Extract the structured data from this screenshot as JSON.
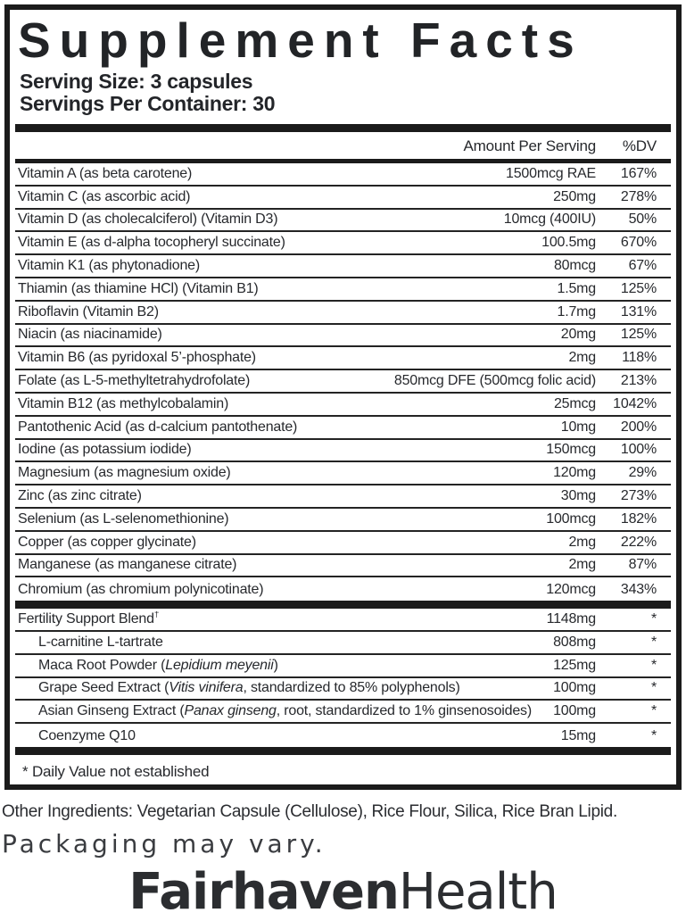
{
  "colors": {
    "ink": "#27292d",
    "rule": "#1b1b1b",
    "background": "#ffffff"
  },
  "label": {
    "title": "Supplement Facts",
    "serving_size": "Serving Size: 3 capsules",
    "servings_per_container": "Servings Per Container: 30",
    "columns": {
      "amount": "Amount Per Serving",
      "dv": "%DV"
    },
    "nutrients": [
      {
        "name": "Vitamin A (as beta carotene)",
        "amount": "1500mcg RAE",
        "dv": "167%"
      },
      {
        "name": "Vitamin C (as ascorbic acid)",
        "amount": "250mg",
        "dv": "278%"
      },
      {
        "name": "Vitamin D (as cholecalciferol) (Vitamin D3)",
        "amount": "10mcg (400IU)",
        "dv": "50%"
      },
      {
        "name": "Vitamin E (as d-alpha tocopheryl succinate)",
        "amount": "100.5mg",
        "dv": "670%"
      },
      {
        "name": "Vitamin K1 (as phytonadione)",
        "amount": "80mcg",
        "dv": "67%"
      },
      {
        "name": "Thiamin (as thiamine HCl) (Vitamin B1)",
        "amount": "1.5mg",
        "dv": "125%"
      },
      {
        "name": "Riboflavin (Vitamin B2)",
        "amount": "1.7mg",
        "dv": "131%"
      },
      {
        "name": "Niacin (as niacinamide)",
        "amount": "20mg",
        "dv": "125%"
      },
      {
        "name": "Vitamin B6 (as pyridoxal 5’-phosphate)",
        "amount": "2mg",
        "dv": "118%"
      },
      {
        "name": "Folate (as L-5-methyltetrahydrofolate)",
        "amount": "850mcg DFE (500mcg folic acid)",
        "dv": "213%"
      },
      {
        "name": "Vitamin B12 (as methylcobalamin)",
        "amount": "25mcg",
        "dv": "1042%"
      },
      {
        "name": "Pantothenic Acid (as d-calcium pantothenate)",
        "amount": "10mg",
        "dv": "200%"
      },
      {
        "name": "Iodine (as potassium iodide)",
        "amount": "150mcg",
        "dv": "100%"
      },
      {
        "name": "Magnesium (as magnesium oxide)",
        "amount": "120mg",
        "dv": "29%"
      },
      {
        "name": "Zinc (as zinc citrate)",
        "amount": "30mg",
        "dv": "273%"
      },
      {
        "name": "Selenium (as L-selenomethionine)",
        "amount": "100mcg",
        "dv": "182%"
      },
      {
        "name": "Copper (as copper glycinate)",
        "amount": "2mg",
        "dv": "222%"
      },
      {
        "name": "Manganese (as manganese citrate)",
        "amount": "2mg",
        "dv": "87%"
      },
      {
        "name": "Chromium (as chromium polynicotinate)",
        "amount": "120mcg",
        "dv": "343%"
      }
    ],
    "blend": {
      "header": {
        "name": "Fertility Support Blend",
        "sup": "†",
        "amount": "1148mg",
        "dv": "*"
      },
      "items": [
        {
          "name": "L-carnitine L-tartrate",
          "amount": "808mg",
          "dv": "*"
        },
        {
          "name_parts": [
            {
              "text": "Maca Root Powder (",
              "italic": false
            },
            {
              "text": "Lepidium meyenii",
              "italic": true
            },
            {
              "text": ")",
              "italic": false
            }
          ],
          "amount": "125mg",
          "dv": "*"
        },
        {
          "name_parts": [
            {
              "text": "Grape Seed Extract (",
              "italic": false
            },
            {
              "text": "Vitis vinifera",
              "italic": true
            },
            {
              "text": ", standardized to 85% polyphenols)",
              "italic": false
            }
          ],
          "amount": "100mg",
          "dv": "*"
        },
        {
          "name_parts": [
            {
              "text": "Asian Ginseng Extract (",
              "italic": false
            },
            {
              "text": "Panax ginseng",
              "italic": true
            },
            {
              "text": ", root, standardized to 1% ginsenosoides)",
              "italic": false
            }
          ],
          "amount": "100mg",
          "dv": "*"
        },
        {
          "name": "Coenzyme Q10",
          "amount": "15mg",
          "dv": "*"
        }
      ]
    },
    "footnote": "* Daily Value not established"
  },
  "below": {
    "other_ingredients": "Other Ingredients: Vegetarian Capsule (Cellulose), Rice Flour, Silica, Rice Bran Lipid.",
    "packaging_note": "Packaging may vary.",
    "logo": {
      "bold": "Fairhaven",
      "light": "Health"
    }
  }
}
